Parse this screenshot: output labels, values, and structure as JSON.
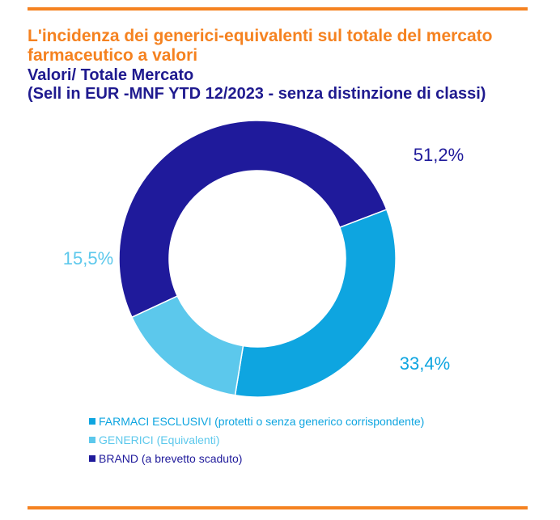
{
  "header": {
    "title": "L'incidenza dei generici-equivalenti sul totale del mercato farmaceutico a valori",
    "subtitle_line1": "Valori/ Totale Mercato",
    "subtitle_line2": "(Sell in EUR -MNF YTD 12/2023 - senza distinzione di classi)"
  },
  "colors": {
    "accent_orange": "#f58220",
    "title_navy": "#1f1a8f",
    "brand": "#1f1a9b",
    "farmaci_esclusivi": "#0ea5e0",
    "generici": "#5cc8ec"
  },
  "chart_data": {
    "type": "pie",
    "donut": true,
    "slices": [
      {
        "name": "BRAND (a brevetto scaduto)",
        "value": 51.2,
        "label": "51,2%",
        "color": "#1f1a9b"
      },
      {
        "name": "FARMACI ESCLUSIVI (protetti o senza generico corrispondente)",
        "value": 33.4,
        "label": "33,4%",
        "color": "#0ea5e0"
      },
      {
        "name": "GENERICI (Equivalenti)",
        "value": 15.5,
        "label": "15,5%",
        "color": "#5cc8ec"
      }
    ],
    "legend": [
      {
        "label": "FARMACI ESCLUSIVI (protetti o senza generico corrispondente)",
        "color": "#0ea5e0"
      },
      {
        "label": "GENERICI (Equivalenti)",
        "color": "#5cc8ec"
      },
      {
        "label": "BRAND (a brevetto scaduto)",
        "color": "#1f1a9b"
      }
    ],
    "legend_position": "bottom-left"
  }
}
